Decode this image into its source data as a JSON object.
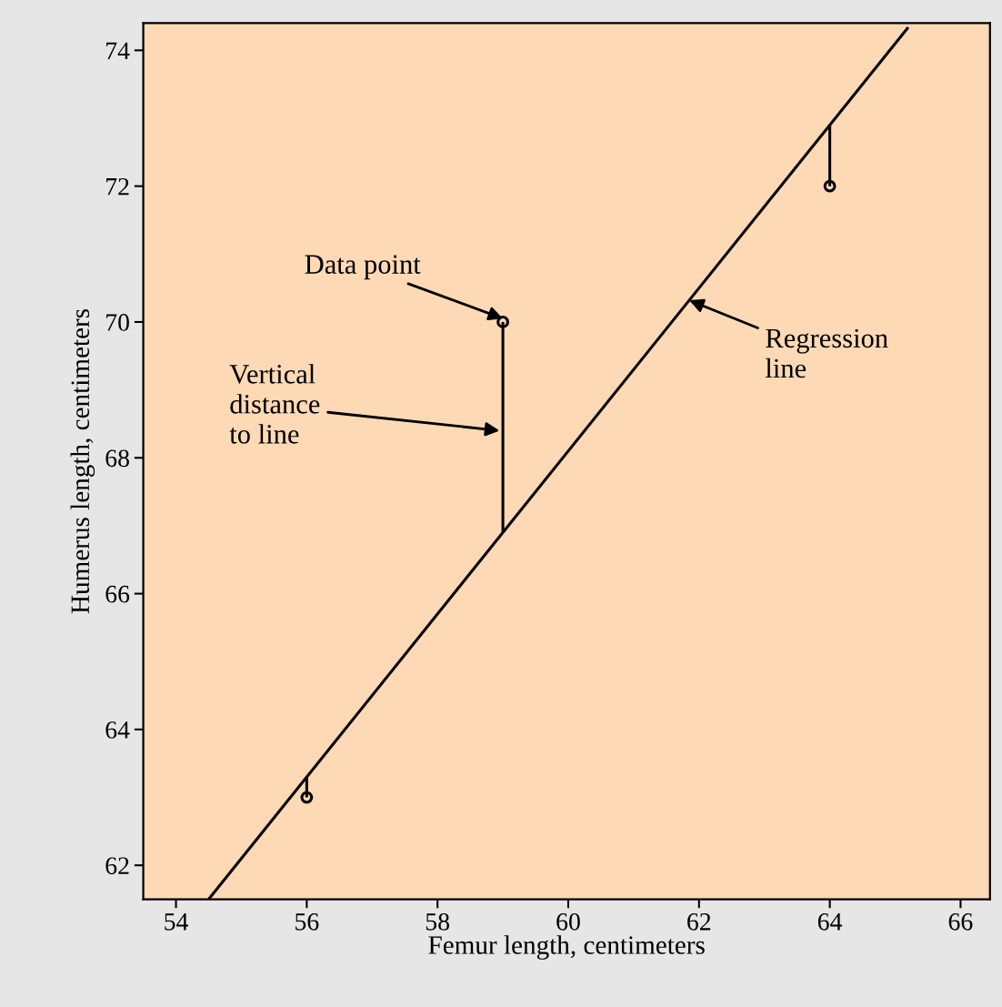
{
  "chart_data": {
    "type": "scatter",
    "xlabel": "Femur length, centimeters",
    "ylabel": "Humerus length, centimeters",
    "xlim": [
      53.5,
      66.45
    ],
    "ylim": [
      61.5,
      74.4
    ],
    "xticks": [
      54,
      56,
      58,
      60,
      62,
      64,
      66
    ],
    "yticks": [
      62,
      64,
      66,
      68,
      70,
      72,
      74
    ],
    "grid": false,
    "legend": false,
    "marker": "circle",
    "series": [
      {
        "type": "line",
        "marker": "none",
        "color": "#000000",
        "x": [
          54.5,
          65.2
        ],
        "values": [
          61.5,
          74.34
        ]
      },
      {
        "type": "line",
        "marker": "none",
        "color": "#000000",
        "x": [
          56,
          56
        ],
        "values": [
          63,
          63.3
        ]
      },
      {
        "type": "line",
        "marker": "none",
        "color": "#000000",
        "x": [
          59,
          59
        ],
        "values": [
          70,
          66.9
        ]
      },
      {
        "type": "line",
        "marker": "none",
        "color": "#000000",
        "x": [
          64,
          64
        ],
        "values": [
          72,
          72.9
        ]
      },
      {
        "color": "#000000",
        "x": [
          56,
          59,
          64
        ],
        "values": [
          63,
          70,
          72
        ]
      }
    ],
    "annotations": [
      {
        "text": "Data point",
        "x": 59,
        "y": 70.05
      },
      {
        "text": "Vertical\ndistance\nto line",
        "x": 58.95,
        "y": 68.4
      },
      {
        "text": "Regression\nline",
        "x": 61.85,
        "y": 70.32
      }
    ]
  }
}
